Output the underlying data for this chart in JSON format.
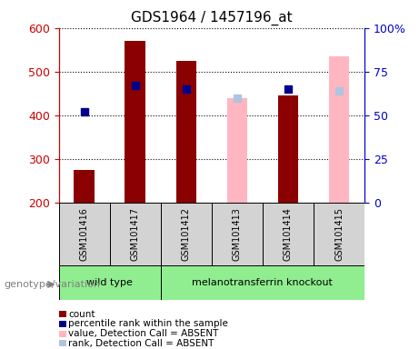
{
  "title": "GDS1964 / 1457196_at",
  "samples": [
    "GSM101416",
    "GSM101417",
    "GSM101412",
    "GSM101413",
    "GSM101414",
    "GSM101415"
  ],
  "count_values": [
    275,
    570,
    525,
    null,
    445,
    null
  ],
  "percentile_values": [
    52,
    67,
    65,
    null,
    65,
    null
  ],
  "absent_value": [
    null,
    null,
    null,
    440,
    null,
    535
  ],
  "absent_rank": [
    null,
    null,
    null,
    440,
    null,
    455
  ],
  "ylim_left": [
    200,
    600
  ],
  "ylim_right": [
    0,
    100
  ],
  "yticks_left": [
    200,
    300,
    400,
    500,
    600
  ],
  "yticks_right": [
    0,
    25,
    50,
    75,
    100
  ],
  "ytick_labels_right": [
    "0",
    "25",
    "50",
    "75",
    "100%"
  ],
  "genotype_groups": [
    {
      "label": "wild type",
      "samples": [
        0,
        1
      ],
      "color": "#90EE90"
    },
    {
      "label": "melanotransferrin knockout",
      "samples": [
        2,
        3,
        4,
        5
      ],
      "color": "#90EE90"
    }
  ],
  "bar_width": 0.4,
  "count_color": "#8B0000",
  "percentile_color": "#00008B",
  "absent_bar_color": "#FFB6C1",
  "absent_rank_color": "#B0C4DE",
  "bg_color": "#ffffff",
  "label_color_left": "#cc0000",
  "label_color_right": "#0000cc",
  "sample_bg_color": "#d3d3d3",
  "genotype_label": "genotype/variation",
  "legend_entries": [
    {
      "color": "#8B0000",
      "label": "count"
    },
    {
      "color": "#00008B",
      "label": "percentile rank within the sample"
    },
    {
      "color": "#FFB6C1",
      "label": "value, Detection Call = ABSENT"
    },
    {
      "color": "#B0C4DE",
      "label": "rank, Detection Call = ABSENT"
    }
  ]
}
